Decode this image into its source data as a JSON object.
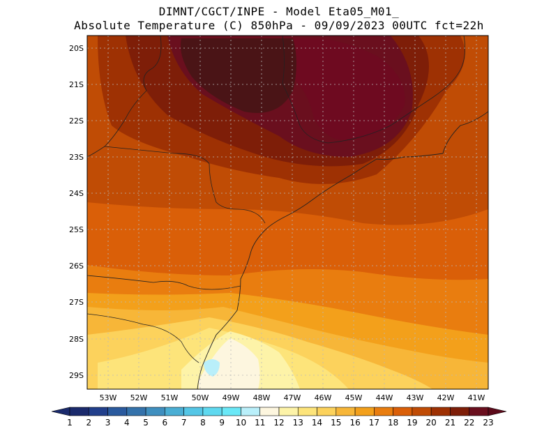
{
  "header": {
    "line1": "DIMNT/CGCT/INPE -  Model Eta05_M01_",
    "line2": "Absolute Temperature (C) 850hPa -  09/09/2023 00UTC fct=22h"
  },
  "axes": {
    "lat_labels": [
      "20S",
      "21S",
      "22S",
      "23S",
      "24S",
      "25S",
      "26S",
      "27S",
      "28S",
      "29S"
    ],
    "lon_labels": [
      "53W",
      "52W",
      "51W",
      "50W",
      "49W",
      "48W",
      "47W",
      "46W",
      "45W",
      "44W",
      "43W",
      "42W",
      "41W"
    ],
    "lat_range": [
      -29.5,
      -19.8
    ],
    "lon_range": [
      -53.75,
      -40.75
    ]
  },
  "colorbar": {
    "labels": [
      "1",
      "2",
      "3",
      "4",
      "5",
      "6",
      "7",
      "8",
      "9",
      "10",
      "11",
      "12",
      "13",
      "14",
      "15",
      "16",
      "17",
      "18",
      "19",
      "20",
      "21",
      "22",
      "23"
    ],
    "colors": [
      "#1a2a6c",
      "#213f8b",
      "#2a5a9e",
      "#3472ab",
      "#3f8fbf",
      "#4aaed4",
      "#54c6e6",
      "#5fd9f0",
      "#6ae8f7",
      "#b9effa",
      "#fdf6df",
      "#fdf3a8",
      "#fde47a",
      "#fcd25c",
      "#f7b638",
      "#f3a01b",
      "#e97d0f",
      "#da5f08",
      "#c04c05",
      "#9e3103",
      "#7e1e08",
      "#6a0f1e"
    ],
    "under_color": "#1a2a6c",
    "over_color": "#5c0a1a"
  },
  "field": {
    "variable": "Absolute Temperature",
    "units": "C",
    "level_hPa": 850,
    "range_c": [
      9,
      23
    ]
  }
}
